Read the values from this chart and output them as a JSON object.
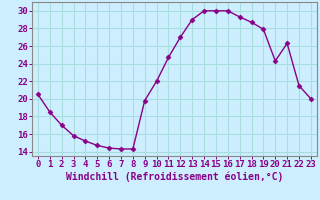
{
  "x": [
    0,
    1,
    2,
    3,
    4,
    5,
    6,
    7,
    8,
    9,
    10,
    11,
    12,
    13,
    14,
    15,
    16,
    17,
    18,
    19,
    20,
    21,
    22,
    23
  ],
  "y": [
    20.5,
    18.5,
    17.0,
    15.8,
    15.2,
    14.7,
    14.4,
    14.3,
    14.3,
    19.8,
    22.0,
    24.7,
    27.0,
    29.0,
    30.0,
    30.0,
    30.0,
    29.3,
    28.7,
    27.9,
    24.3,
    26.3,
    21.5,
    20.0
  ],
  "line_color": "#880088",
  "marker": "D",
  "marker_size": 2.5,
  "bg_color": "#cceeff",
  "grid_color": "#aadddd",
  "xlabel": "Windchill (Refroidissement éolien,°C)",
  "ylim": [
    13.5,
    31
  ],
  "xlim": [
    -0.5,
    23.5
  ],
  "yticks": [
    14,
    16,
    18,
    20,
    22,
    24,
    26,
    28,
    30
  ],
  "xticks": [
    0,
    1,
    2,
    3,
    4,
    5,
    6,
    7,
    8,
    9,
    10,
    11,
    12,
    13,
    14,
    15,
    16,
    17,
    18,
    19,
    20,
    21,
    22,
    23
  ],
  "tick_label_fontsize": 6.5,
  "xlabel_fontsize": 7,
  "axis_color": "#880088",
  "spine_color": "#888888"
}
